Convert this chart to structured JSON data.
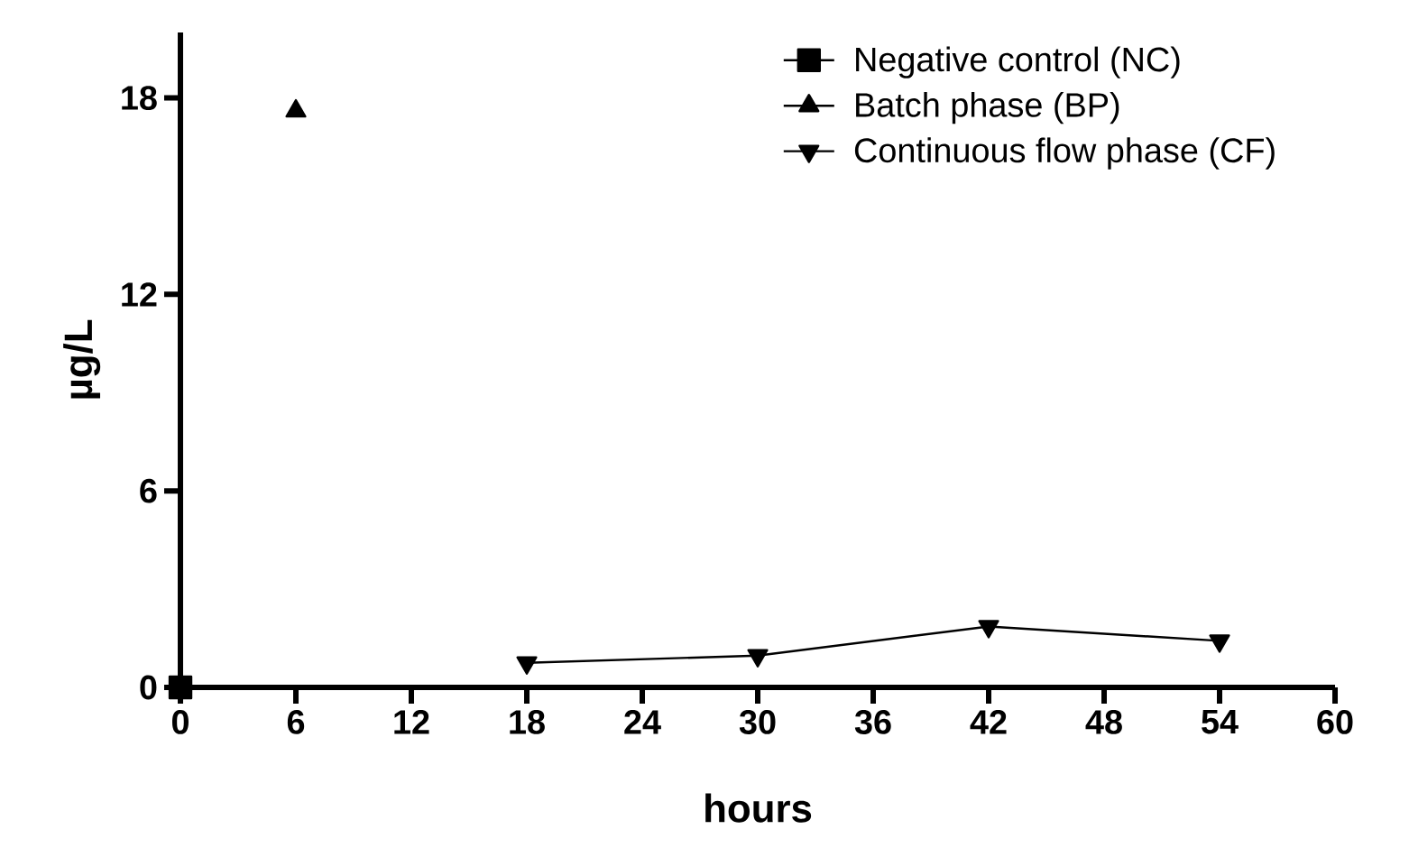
{
  "chart_data": {
    "type": "line",
    "xlabel": "hours",
    "ylabel": "µg/L",
    "xlim": [
      0,
      60
    ],
    "xticks": [
      0,
      6,
      12,
      18,
      24,
      30,
      36,
      42,
      48,
      54,
      60
    ],
    "ylim": [
      0,
      20
    ],
    "yticks": [
      0,
      6,
      12,
      18
    ],
    "grid": false,
    "legend": "top right",
    "series": [
      {
        "name": "Negative control (NC)",
        "color": "#000000",
        "marker": "square",
        "x": [
          0
        ],
        "values": [
          0
        ]
      },
      {
        "name": "Batch phase (BP)",
        "color": "#000000",
        "marker": "triangle",
        "x": [
          6
        ],
        "values": [
          17.6
        ]
      },
      {
        "name": "Continuous flow phase (CF)",
        "color": "#000000",
        "marker": "triangle down",
        "x": [
          18,
          30,
          42,
          54
        ],
        "values": [
          0.75,
          0.97,
          1.86,
          1.42
        ]
      }
    ]
  }
}
